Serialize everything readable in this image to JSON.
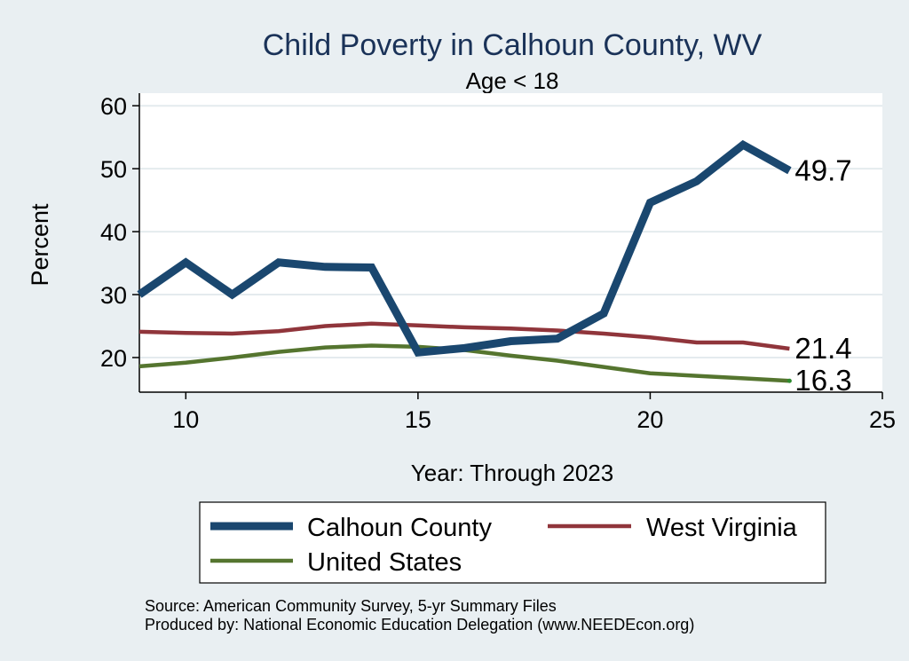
{
  "chart_data": {
    "type": "line",
    "title": "Child Poverty in Calhoun County, WV",
    "subtitle": "Age < 18",
    "xlabel": "Year: Through 2023",
    "ylabel": "Percent",
    "xlim": [
      9,
      25
    ],
    "ylim": [
      14.5,
      62
    ],
    "x_ticks": [
      10,
      15,
      20,
      25
    ],
    "y_ticks": [
      20,
      30,
      40,
      50,
      60
    ],
    "grid": true,
    "legend_placement": "bottom",
    "series": [
      {
        "name": "Calhoun County",
        "color": "#1a476f",
        "x": [
          9,
          10,
          11,
          12,
          13,
          14,
          15,
          16,
          17,
          18,
          19,
          20,
          21,
          22,
          23
        ],
        "values": [
          30,
          35.1,
          30,
          35.1,
          34.4,
          34.3,
          20.8,
          21.5,
          22.6,
          23.0,
          27.0,
          44.6,
          48.0,
          53.8,
          49.7
        ],
        "end_label": "49.7"
      },
      {
        "name": "West Virginia",
        "color": "#90353b",
        "x": [
          9,
          10,
          11,
          12,
          13,
          14,
          15,
          16,
          17,
          18,
          19,
          20,
          21,
          22,
          23
        ],
        "values": [
          24.1,
          23.9,
          23.8,
          24.2,
          25.0,
          25.4,
          25.1,
          24.8,
          24.6,
          24.3,
          23.8,
          23.2,
          22.4,
          22.4,
          21.4
        ],
        "end_label": "21.4"
      },
      {
        "name": "United States",
        "color": "#55752f",
        "x": [
          9,
          10,
          11,
          12,
          13,
          14,
          15,
          16,
          17,
          18,
          19,
          20,
          21,
          22,
          23
        ],
        "values": [
          18.6,
          19.2,
          20.0,
          20.9,
          21.6,
          21.9,
          21.7,
          21.2,
          20.3,
          19.5,
          18.5,
          17.5,
          17.1,
          16.7,
          16.3
        ],
        "end_label": "16.3"
      }
    ]
  },
  "source_lines": [
    "Source: American Community Survey, 5-yr Summary Files",
    "Produced by: National Economic Education Delegation (www.NEEDEcon.org)"
  ]
}
